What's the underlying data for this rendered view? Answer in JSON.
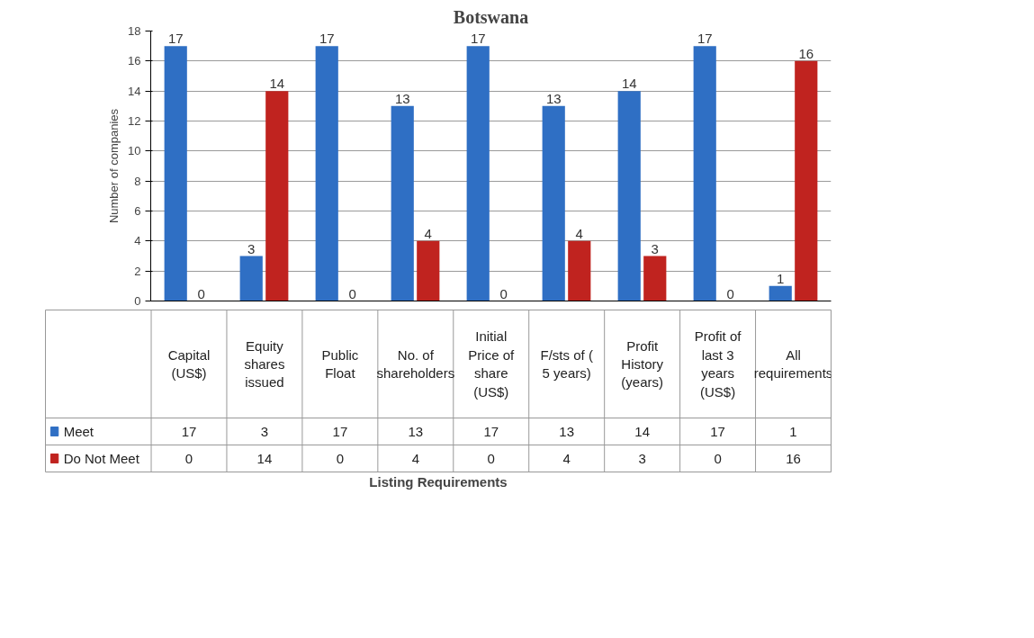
{
  "chart_data": {
    "type": "bar",
    "title": "Botswana",
    "annotations": [
      "Listing Requirements"
    ],
    "ylabel": "Number of companies",
    "categories": [
      "Capital (US$)",
      "Equity shares issued",
      "Public Float",
      "No. of shareholders",
      "Initial Price of share (US$)",
      "F/sts of ( 5 years)",
      "Profit History (years)",
      "Profit of last 3 years (US$)",
      "All requirements"
    ],
    "series": [
      {
        "name": "Meet",
        "color": "#2f6fc4",
        "values": [
          17,
          3,
          17,
          13,
          17,
          13,
          14,
          17,
          1
        ],
        "value_labels": [
          "17",
          "3",
          "17",
          "13",
          "17",
          "13",
          "14",
          "17",
          "1"
        ]
      },
      {
        "name": "Do Not Meet",
        "color": "#c0231f",
        "values": [
          0,
          14,
          0,
          4,
          0,
          4,
          3,
          0,
          16
        ],
        "value_labels": [
          "0",
          "14",
          "0",
          "4",
          "0",
          "4",
          "3",
          "0",
          "16"
        ]
      }
    ],
    "ylim": [
      0,
      18
    ],
    "yticks": [
      0,
      2,
      4,
      6,
      8,
      10,
      12,
      14,
      16,
      18
    ],
    "grid": "y",
    "legend": "bottom",
    "data_labels": true,
    "tick_labels": "y"
  }
}
